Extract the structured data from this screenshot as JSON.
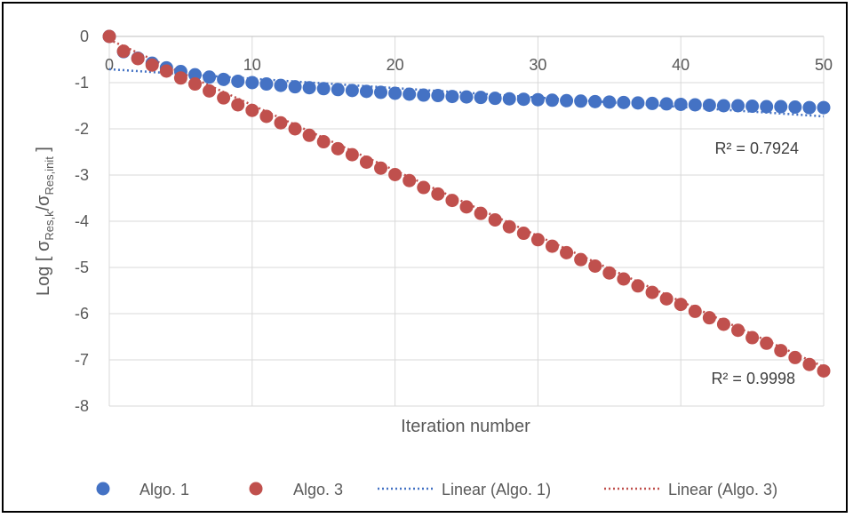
{
  "chart_data": {
    "type": "scatter",
    "title": "",
    "xlabel": "Iteration number",
    "ylabel": {
      "prefix": "Log [ ",
      "num_sym": "σ",
      "num_sub": "Res,k",
      "slash": "/",
      "den_sym": "σ",
      "den_sub": "Res,init",
      "suffix": " ]"
    },
    "xlim": [
      0,
      50
    ],
    "ylim": [
      -8,
      0
    ],
    "x_ticks": [
      0,
      10,
      20,
      30,
      40,
      50
    ],
    "y_ticks": [
      0,
      -1,
      -2,
      -3,
      -4,
      -5,
      -6,
      -7,
      -8
    ],
    "grid": true,
    "legend_position": "bottom",
    "x": [
      0,
      1,
      2,
      3,
      4,
      5,
      6,
      7,
      8,
      9,
      10,
      11,
      12,
      13,
      14,
      15,
      16,
      17,
      18,
      19,
      20,
      21,
      22,
      23,
      24,
      25,
      26,
      27,
      28,
      29,
      30,
      31,
      32,
      33,
      34,
      35,
      36,
      37,
      38,
      39,
      40,
      41,
      42,
      43,
      44,
      45,
      46,
      47,
      48,
      49,
      50
    ],
    "series": [
      {
        "name": "Algo. 1",
        "color": "#4472C4",
        "values": [
          0,
          -0.33,
          -0.47,
          -0.58,
          -0.68,
          -0.76,
          -0.83,
          -0.88,
          -0.93,
          -0.97,
          -1.0,
          -1.03,
          -1.06,
          -1.09,
          -1.11,
          -1.13,
          -1.15,
          -1.17,
          -1.19,
          -1.21,
          -1.23,
          -1.25,
          -1.27,
          -1.28,
          -1.3,
          -1.31,
          -1.32,
          -1.34,
          -1.35,
          -1.36,
          -1.37,
          -1.38,
          -1.39,
          -1.4,
          -1.41,
          -1.42,
          -1.43,
          -1.44,
          -1.45,
          -1.46,
          -1.47,
          -1.48,
          -1.49,
          -1.5,
          -1.5,
          -1.51,
          -1.52,
          -1.52,
          -1.53,
          -1.54,
          -1.54
        ]
      },
      {
        "name": "Algo. 3",
        "color": "#C0504D",
        "values": [
          0,
          -0.32,
          -0.48,
          -0.62,
          -0.75,
          -0.9,
          -1.03,
          -1.18,
          -1.33,
          -1.48,
          -1.6,
          -1.73,
          -1.87,
          -2.0,
          -2.14,
          -2.28,
          -2.43,
          -2.56,
          -2.72,
          -2.85,
          -2.99,
          -3.12,
          -3.27,
          -3.41,
          -3.55,
          -3.69,
          -3.83,
          -3.97,
          -4.12,
          -4.26,
          -4.4,
          -4.54,
          -4.68,
          -4.83,
          -4.97,
          -5.12,
          -5.25,
          -5.4,
          -5.54,
          -5.68,
          -5.8,
          -5.95,
          -6.09,
          -6.23,
          -6.36,
          -6.52,
          -6.64,
          -6.8,
          -6.95,
          -7.1,
          -7.24
        ]
      }
    ],
    "trendlines": [
      {
        "name": "Linear (Algo. 1)",
        "color": "#4472C4",
        "style": "dotted",
        "x": [
          0,
          50
        ],
        "y": [
          -0.71,
          -1.73
        ],
        "r2_label": "R² = 0.7924"
      },
      {
        "name": "Linear (Algo. 3)",
        "color": "#C0504D",
        "style": "dotted",
        "x": [
          0,
          50
        ],
        "y": [
          -0.07,
          -7.15
        ],
        "r2_label": "R² = 0.9998"
      }
    ]
  }
}
